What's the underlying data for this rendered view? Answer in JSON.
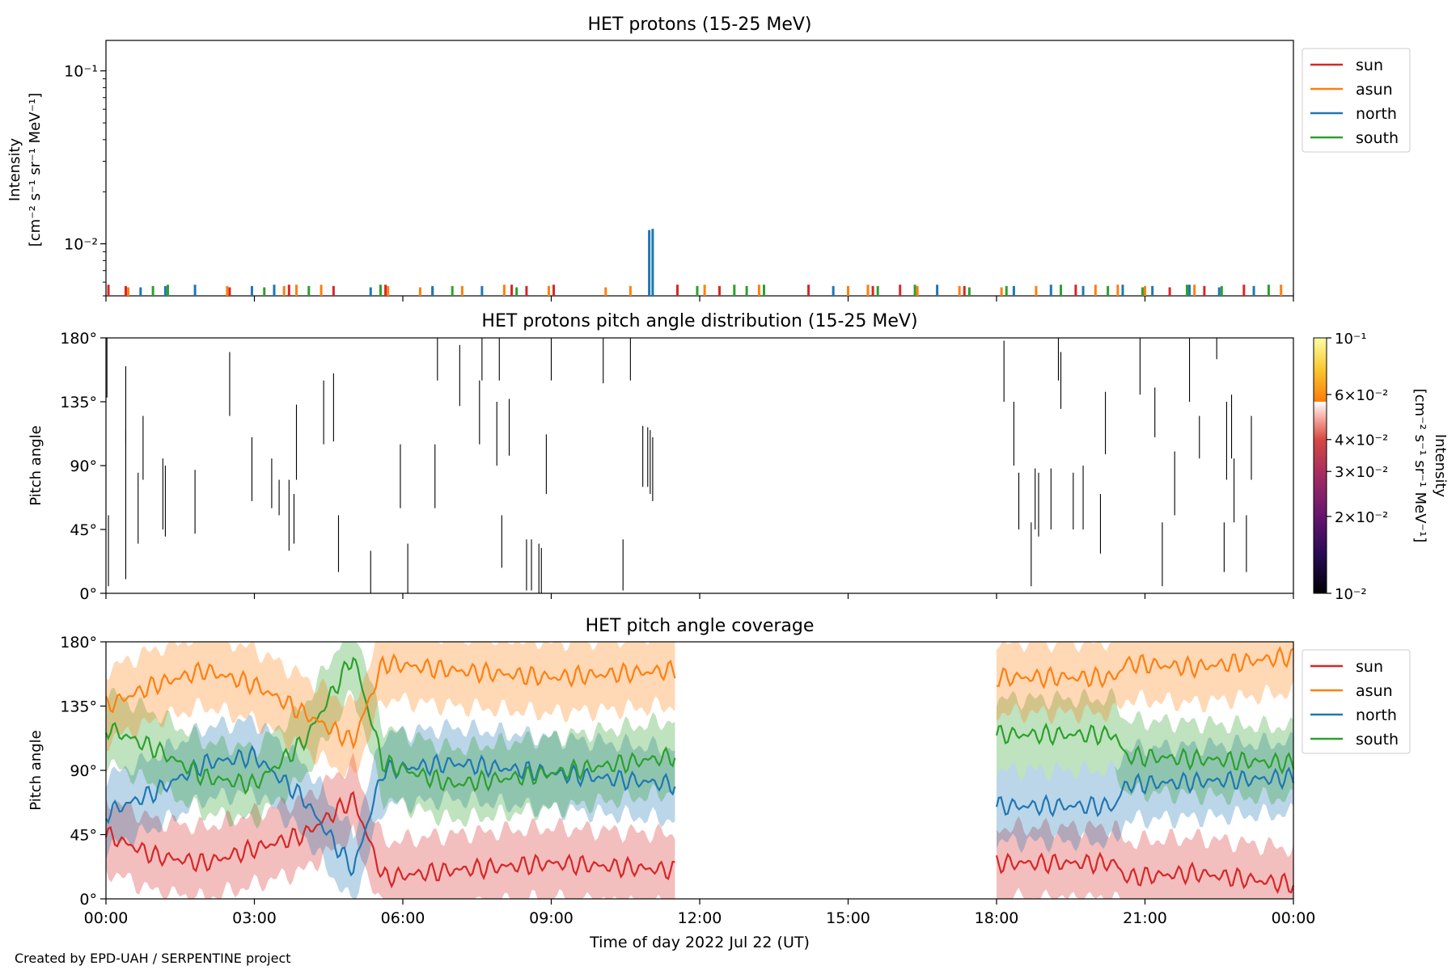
{
  "figure": {
    "credit": "Created by EPD-UAH / SERPENTINE project",
    "xlabel": "Time of day 2022 Jul 22 (UT)",
    "x_ticks": [
      "00:00",
      "03:00",
      "06:00",
      "09:00",
      "12:00",
      "15:00",
      "18:00",
      "21:00",
      "00:00"
    ]
  },
  "colors": {
    "sun": "#d62728",
    "asun": "#ff7f0e",
    "north": "#1f77b4",
    "south": "#2ca02c"
  },
  "chart_data": [
    {
      "id": "intensity",
      "type": "bar",
      "title": "HET protons (15-25 MeV)",
      "ylabel_line1": "Intensity",
      "ylabel_line2": "[cm⁻² s⁻¹ sr⁻¹ MeV⁻¹]",
      "yscale": "log",
      "ylim": [
        0.005,
        0.15
      ],
      "y_ticks": [
        {
          "value": 0.1,
          "label": "10⁻¹"
        },
        {
          "value": 0.01,
          "label": "10⁻²"
        }
      ],
      "xlim_hours": [
        0,
        24
      ],
      "legend_placement": "outside-right-top",
      "series": [
        {
          "name": "sun",
          "times": [
            0.05,
            0.4,
            2.5,
            3.7,
            4.6,
            5.65,
            6.6,
            8.2,
            8.5,
            9.05,
            11.55,
            12.4,
            14.2,
            15.5,
            16.05,
            17.35,
            19.6,
            21.5,
            22.2,
            23.0
          ],
          "values": [
            0.0058,
            0.0057,
            0.0056,
            0.0058,
            0.0057,
            0.0058,
            0.0056,
            0.0058,
            0.0057,
            0.0058,
            0.0058,
            0.0057,
            0.0058,
            0.0057,
            0.0058,
            0.0057,
            0.0058,
            0.0056,
            0.0057,
            0.0058
          ]
        },
        {
          "name": "asun",
          "times": [
            0.45,
            2.45,
            3.6,
            3.85,
            4.35,
            5.7,
            6.35,
            7.2,
            8.05,
            8.95,
            10.1,
            10.6,
            12.1,
            13.2,
            15.0,
            15.4,
            16.4,
            17.25,
            18.1,
            18.8,
            20.0,
            20.45,
            21.0,
            22.0,
            23.75
          ],
          "values": [
            0.0056,
            0.0057,
            0.0057,
            0.0058,
            0.0058,
            0.0057,
            0.0056,
            0.0057,
            0.0058,
            0.0057,
            0.0056,
            0.0057,
            0.0058,
            0.0058,
            0.0057,
            0.0058,
            0.0057,
            0.0057,
            0.0056,
            0.0057,
            0.0058,
            0.0058,
            0.0057,
            0.0058,
            0.0058
          ]
        },
        {
          "name": "north",
          "times": [
            0.7,
            1.2,
            1.8,
            2.95,
            3.4,
            5.35,
            6.6,
            7.6,
            10.98,
            11.05,
            14.7,
            16.8,
            18.35,
            19.1,
            19.75,
            20.55,
            21.15,
            21.9,
            22.5,
            23.2
          ],
          "values": [
            0.0056,
            0.0057,
            0.0058,
            0.0057,
            0.0058,
            0.0056,
            0.0057,
            0.0057,
            0.012,
            0.0122,
            0.0057,
            0.0058,
            0.0057,
            0.0058,
            0.0057,
            0.0058,
            0.0057,
            0.0058,
            0.0056,
            0.0057
          ]
        },
        {
          "name": "south",
          "times": [
            0.95,
            1.25,
            3.2,
            4.1,
            5.55,
            7.0,
            8.3,
            11.95,
            12.7,
            12.95,
            13.3,
            15.6,
            16.35,
            17.45,
            18.2,
            19.3,
            20.25,
            20.95,
            21.85,
            22.55,
            23.5
          ],
          "values": [
            0.0057,
            0.0058,
            0.0056,
            0.0057,
            0.0058,
            0.0057,
            0.0056,
            0.0057,
            0.0058,
            0.0057,
            0.0058,
            0.0057,
            0.0058,
            0.0056,
            0.0057,
            0.0058,
            0.0057,
            0.0056,
            0.0058,
            0.0057,
            0.0058
          ]
        }
      ]
    },
    {
      "id": "pad",
      "type": "heatmap",
      "title": "HET protons pitch angle distribution (15-25 MeV)",
      "ylabel": "Pitch angle",
      "ylim": [
        0,
        180
      ],
      "y_ticks": [
        "0°",
        "45°",
        "90°",
        "135°",
        "180°"
      ],
      "xlim_hours": [
        0,
        24
      ],
      "colorbar": {
        "label_line1": "Intensity",
        "label_line2": "[cm⁻² s⁻¹ sr⁻¹ MeV⁻¹]",
        "scale": "log",
        "range": [
          0.01,
          0.1
        ],
        "colormap": "inferno",
        "ticks": [
          {
            "value": 0.1,
            "label": "10⁻¹"
          },
          {
            "value": 0.06,
            "label": "6×10⁻²"
          },
          {
            "value": 0.04,
            "label": "4×10⁻²"
          },
          {
            "value": 0.03,
            "label": "3×10⁻²"
          },
          {
            "value": 0.02,
            "label": "2×10⁻²"
          },
          {
            "value": 0.01,
            "label": "10⁻²"
          }
        ]
      },
      "segments": [
        [
          0.02,
          138,
          180
        ],
        [
          0.05,
          5,
          55
        ],
        [
          0.4,
          10,
          115
        ],
        [
          0.4,
          105,
          160
        ],
        [
          0.65,
          35,
          85
        ],
        [
          0.75,
          80,
          125
        ],
        [
          1.15,
          45,
          95
        ],
        [
          1.2,
          40,
          90
        ],
        [
          1.8,
          42,
          87
        ],
        [
          2.5,
          125,
          170
        ],
        [
          2.95,
          65,
          110
        ],
        [
          3.35,
          60,
          95
        ],
        [
          3.5,
          55,
          80
        ],
        [
          3.7,
          30,
          80
        ],
        [
          3.8,
          35,
          70
        ],
        [
          3.85,
          80,
          133
        ],
        [
          4.4,
          105,
          150
        ],
        [
          4.6,
          107,
          155
        ],
        [
          4.7,
          15,
          55
        ],
        [
          5.35,
          0,
          30
        ],
        [
          5.95,
          60,
          105
        ],
        [
          6.1,
          0,
          35
        ],
        [
          6.65,
          60,
          105
        ],
        [
          6.7,
          150,
          180
        ],
        [
          7.15,
          132,
          175
        ],
        [
          7.55,
          105,
          150
        ],
        [
          7.6,
          150,
          180
        ],
        [
          7.9,
          90,
          135
        ],
        [
          7.95,
          150,
          180
        ],
        [
          8.0,
          18,
          55
        ],
        [
          8.15,
          97,
          137
        ],
        [
          8.5,
          2,
          38
        ],
        [
          8.6,
          2,
          38
        ],
        [
          8.75,
          0,
          35
        ],
        [
          8.8,
          0,
          32
        ],
        [
          8.9,
          70,
          112
        ],
        [
          9.0,
          150,
          180
        ],
        [
          10.05,
          148,
          180
        ],
        [
          10.45,
          2,
          38
        ],
        [
          10.6,
          150,
          180
        ],
        [
          10.85,
          75,
          118
        ],
        [
          10.95,
          75,
          117
        ],
        [
          11.0,
          70,
          115
        ],
        [
          11.05,
          65,
          110
        ],
        [
          18.15,
          135,
          178
        ],
        [
          18.35,
          90,
          135
        ],
        [
          18.45,
          45,
          85
        ],
        [
          18.7,
          5,
          50
        ],
        [
          18.78,
          45,
          88
        ],
        [
          18.85,
          40,
          85
        ],
        [
          19.1,
          45,
          88
        ],
        [
          19.25,
          150,
          180
        ],
        [
          19.3,
          130,
          170
        ],
        [
          19.55,
          45,
          85
        ],
        [
          19.75,
          45,
          90
        ],
        [
          20.1,
          28,
          70
        ],
        [
          20.2,
          98,
          142
        ],
        [
          20.9,
          140,
          180
        ],
        [
          21.2,
          110,
          145
        ],
        [
          21.35,
          5,
          50
        ],
        [
          21.6,
          55,
          100
        ],
        [
          21.9,
          135,
          180
        ],
        [
          22.1,
          95,
          125
        ],
        [
          22.45,
          165,
          180
        ],
        [
          22.6,
          15,
          50
        ],
        [
          22.65,
          80,
          135
        ],
        [
          22.8,
          50,
          95
        ],
        [
          23.15,
          80,
          125
        ],
        [
          23.05,
          15,
          55
        ],
        [
          22.75,
          95,
          140
        ]
      ]
    },
    {
      "id": "coverage",
      "type": "area",
      "title": "HET pitch angle coverage",
      "ylabel": "Pitch angle",
      "ylim": [
        0,
        180
      ],
      "y_ticks": [
        "0°",
        "45°",
        "90°",
        "135°",
        "180°"
      ],
      "xlim_hours": [
        0,
        24
      ],
      "data_intervals_hours": [
        [
          0,
          11.5
        ],
        [
          18,
          24
        ]
      ],
      "legend_placement": "outside-right-top",
      "band_half_width_deg": 25,
      "series": [
        {
          "name": "sun",
          "x": [
            0,
            1,
            2,
            3,
            4,
            5,
            5.6,
            7,
            9,
            11.5,
            18,
            20.4,
            20.6,
            22,
            24
          ],
          "y": [
            45,
            30,
            25,
            35,
            45,
            70,
            15,
            20,
            25,
            20,
            25,
            25,
            15,
            18,
            10
          ]
        },
        {
          "name": "asun",
          "x": [
            0,
            1,
            2,
            3,
            4,
            5,
            5.6,
            7,
            9,
            11.5,
            18,
            20.4,
            20.6,
            22,
            24
          ],
          "y": [
            135,
            150,
            160,
            150,
            130,
            110,
            165,
            160,
            155,
            160,
            155,
            155,
            165,
            162,
            170
          ]
        },
        {
          "name": "north",
          "x": [
            0,
            1,
            2,
            3,
            4,
            5,
            5.6,
            7,
            9,
            11.5,
            18,
            20.4,
            20.6,
            22,
            24
          ],
          "y": [
            60,
            75,
            95,
            100,
            70,
            20,
            90,
            95,
            88,
            80,
            65,
            65,
            80,
            82,
            85
          ]
        },
        {
          "name": "south",
          "x": [
            0,
            1,
            2,
            3,
            4,
            5,
            5.6,
            7,
            9,
            11.5,
            18,
            20.4,
            20.6,
            22,
            24
          ],
          "y": [
            120,
            105,
            85,
            80,
            110,
            170,
            95,
            80,
            88,
            100,
            115,
            115,
            100,
            98,
            95
          ]
        }
      ]
    }
  ]
}
